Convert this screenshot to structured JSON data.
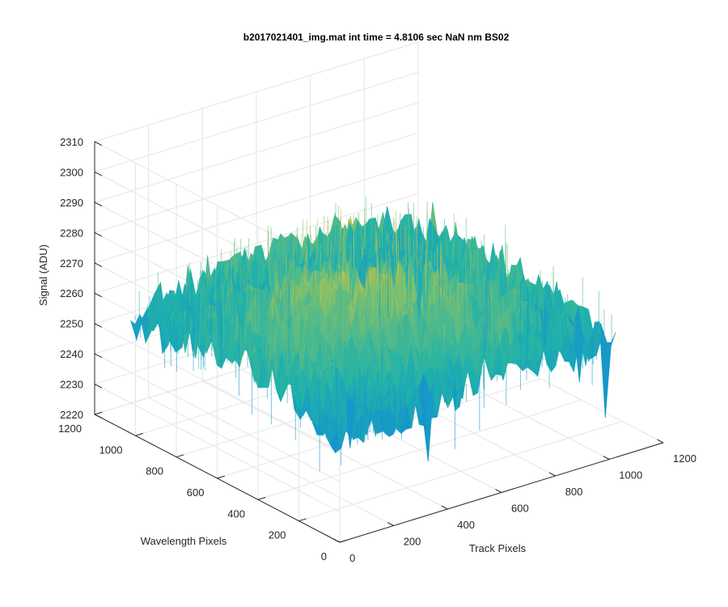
{
  "chart_data": {
    "type": "surface",
    "title": "b2017021401_img.mat int time = 4.8106 sec  NaN nm BS02",
    "xlabel": "Track Pixels",
    "ylabel": "Wavelength Pixels",
    "zlabel": "Signal (ADU)",
    "x_ticks": [
      "0",
      "200",
      "400",
      "600",
      "800",
      "1000",
      "1200"
    ],
    "y_ticks": [
      "0",
      "200",
      "400",
      "600",
      "800",
      "1000",
      "1200"
    ],
    "z_ticks": [
      "2220",
      "2230",
      "2240",
      "2250",
      "2260",
      "2270",
      "2280",
      "2290",
      "2300",
      "2310"
    ],
    "xlim": [
      0,
      1200
    ],
    "ylim": [
      0,
      1200
    ],
    "zlim": [
      2220,
      2310
    ],
    "grid": true,
    "colormap": "parula",
    "colors": {
      "low": "#0f6fd8",
      "mid": "#21a9a1",
      "high": "#f2c935"
    },
    "surface": {
      "x_extent": [
        0,
        1024
      ],
      "y_extent": [
        0,
        1024
      ],
      "mean_signal": 2255,
      "approx_range": [
        2222,
        2305
      ],
      "peak_region": "center of the array, around 2270 to 2290",
      "noise": "high-frequency pixel noise with spikes down to about 2222 near the front corner"
    }
  }
}
